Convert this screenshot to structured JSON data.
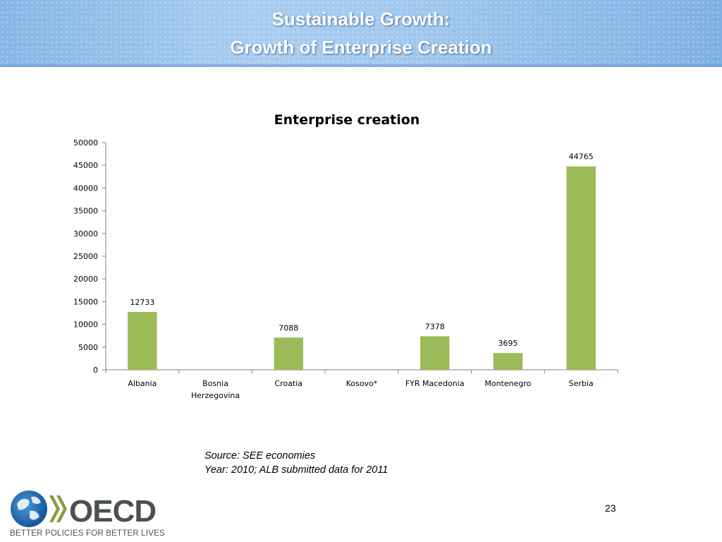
{
  "slide": {
    "title_line1": "Sustainable Growth:",
    "title_line2": "Growth of Enterprise Creation",
    "source_line1": "Source: SEE economies",
    "source_line2": "Year: 2010; ALB submitted data for 2011",
    "page_number": "23"
  },
  "logo": {
    "text": "OECD",
    "tagline": "BETTER POLICIES FOR BETTER LIVES",
    "colors": {
      "globe": "#1f6fb6",
      "chevron": "#8a9a3f",
      "text": "#4b5153"
    }
  },
  "chart_data": {
    "type": "bar",
    "title": "Enterprise creation",
    "categories": [
      "Albania",
      "Bosnia Herzegovina",
      "Croatia",
      "Kosovo*",
      "FYR Macedonia",
      "Montenegro",
      "Serbia"
    ],
    "values": [
      12733,
      null,
      7088,
      null,
      7378,
      3695,
      44765
    ],
    "data_labels": [
      "12733",
      "",
      "7088",
      "",
      "7378",
      "3695",
      "44765"
    ],
    "ylim": [
      0,
      50000
    ],
    "yticks": [
      0,
      5000,
      10000,
      15000,
      20000,
      25000,
      30000,
      35000,
      40000,
      45000,
      50000
    ],
    "grid": false,
    "legend": "none",
    "bar_color": "#9bbb59",
    "xlabel": "",
    "ylabel": ""
  }
}
